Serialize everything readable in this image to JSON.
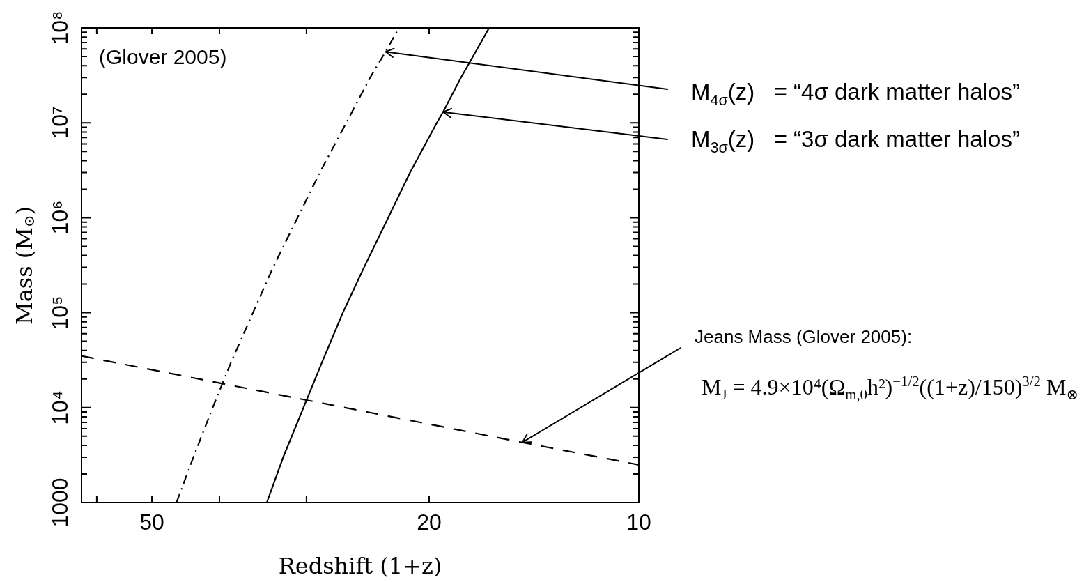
{
  "chart_data": {
    "type": "line",
    "xlabel": "Redshift (1+z)",
    "ylabel": "Mass (M$_{⊙}$)",
    "log": "xy",
    "xlim": [
      63.1,
      10
    ],
    "ylim": [
      1000,
      100000000
    ],
    "xticks": [
      {
        "value": 60,
        "label": null
      },
      50,
      {
        "value": 40,
        "label": null
      },
      {
        "value": 30,
        "label": null
      },
      20,
      10
    ],
    "yticks": [
      1000,
      {
        "value": 2000,
        "label": null
      },
      {
        "value": 3000,
        "label": null
      },
      {
        "value": 4000,
        "label": null
      },
      {
        "value": 5000,
        "label": null
      },
      {
        "value": 6000,
        "label": null
      },
      {
        "value": 7000,
        "label": null
      },
      {
        "value": 8000,
        "label": null
      },
      {
        "value": 9000,
        "label": null
      },
      {
        "value": 10000,
        "label": "10⁴"
      },
      {
        "value": 20000,
        "label": null
      },
      {
        "value": 30000,
        "label": null
      },
      {
        "value": 40000,
        "label": null
      },
      {
        "value": 50000,
        "label": null
      },
      {
        "value": 60000,
        "label": null
      },
      {
        "value": 70000,
        "label": null
      },
      {
        "value": 80000,
        "label": null
      },
      {
        "value": 90000,
        "label": null
      },
      {
        "value": 100000,
        "label": "10⁵"
      },
      {
        "value": 200000,
        "label": null
      },
      {
        "value": 300000,
        "label": null
      },
      {
        "value": 400000,
        "label": null
      },
      {
        "value": 500000,
        "label": null
      },
      {
        "value": 600000,
        "label": null
      },
      {
        "value": 700000,
        "label": null
      },
      {
        "value": 800000,
        "label": null
      },
      {
        "value": 900000,
        "label": null
      },
      {
        "value": 1000000,
        "label": "10⁶"
      },
      {
        "value": 2000000,
        "label": null
      },
      {
        "value": 3000000,
        "label": null
      },
      {
        "value": 4000000,
        "label": null
      },
      {
        "value": 5000000,
        "label": null
      },
      {
        "value": 6000000,
        "label": null
      },
      {
        "value": 7000000,
        "label": null
      },
      {
        "value": 8000000,
        "label": null
      },
      {
        "value": 9000000,
        "label": null
      },
      {
        "value": 10000000,
        "label": "10⁷"
      },
      {
        "value": 20000000,
        "label": null
      },
      {
        "value": 30000000,
        "label": null
      },
      {
        "value": 40000000,
        "label": null
      },
      {
        "value": 50000000,
        "label": null
      },
      {
        "value": 60000000,
        "label": null
      },
      {
        "value": 70000000,
        "label": null
      },
      {
        "value": 80000000,
        "label": null
      },
      {
        "value": 90000000,
        "label": null
      },
      {
        "value": 100000000,
        "label": "10⁸"
      }
    ],
    "grid": false,
    "legend": false,
    "marker": "none",
    "series": [
      {
        "color": "#000000",
        "line_style": "dashdot",
        "x": [
          46.1,
          43.6,
          40.9,
          38.5,
          35.8,
          33.5,
          30.9,
          28.7,
          26.3,
          24.3,
          23.1,
          22.1
        ],
        "values": [
          1000,
          3000,
          10000,
          30000,
          100000,
          300000,
          1000000,
          3000000,
          10000000,
          30000000,
          56000000,
          100000000
        ]
      },
      {
        "color": "#000000",
        "line_style": "solid",
        "x": [
          34.2,
          32.4,
          30.3,
          28.5,
          26.6,
          24.8,
          22.9,
          21.3,
          19.5,
          19.1,
          18.0,
          16.4
        ],
        "values": [
          1000,
          3000,
          10000,
          30000,
          100000,
          300000,
          1000000,
          3000000,
          10000000,
          13000000,
          30000000,
          100000000
        ]
      },
      {
        "color": "#000000",
        "line_style": "dashed",
        "x": [
          63.1,
          14.7,
          10
        ],
        "values": [
          35000,
          4300,
          2500
        ]
      }
    ],
    "annotations": [
      "(Glover 2005)",
      {
        "text": "M$_{4σ}$(z)   = “4σ dark matter halos”",
        "x": 23.1,
        "y": 56000000
      },
      {
        "text": "M$_{3σ}$(z)   = “3σ dark matter halos”",
        "x": 19.1,
        "y": 13000000
      },
      {
        "text": "Jeans Mass (Glover 2005):",
        "x": 14.7,
        "y": 4300
      },
      "M$_{J}$ = 4.9×10⁴(Ω$_{m,0}$h²)$^{−1/2}$((1+z)/150)$^{3/2}$ M$_{⊗}$"
    ]
  }
}
